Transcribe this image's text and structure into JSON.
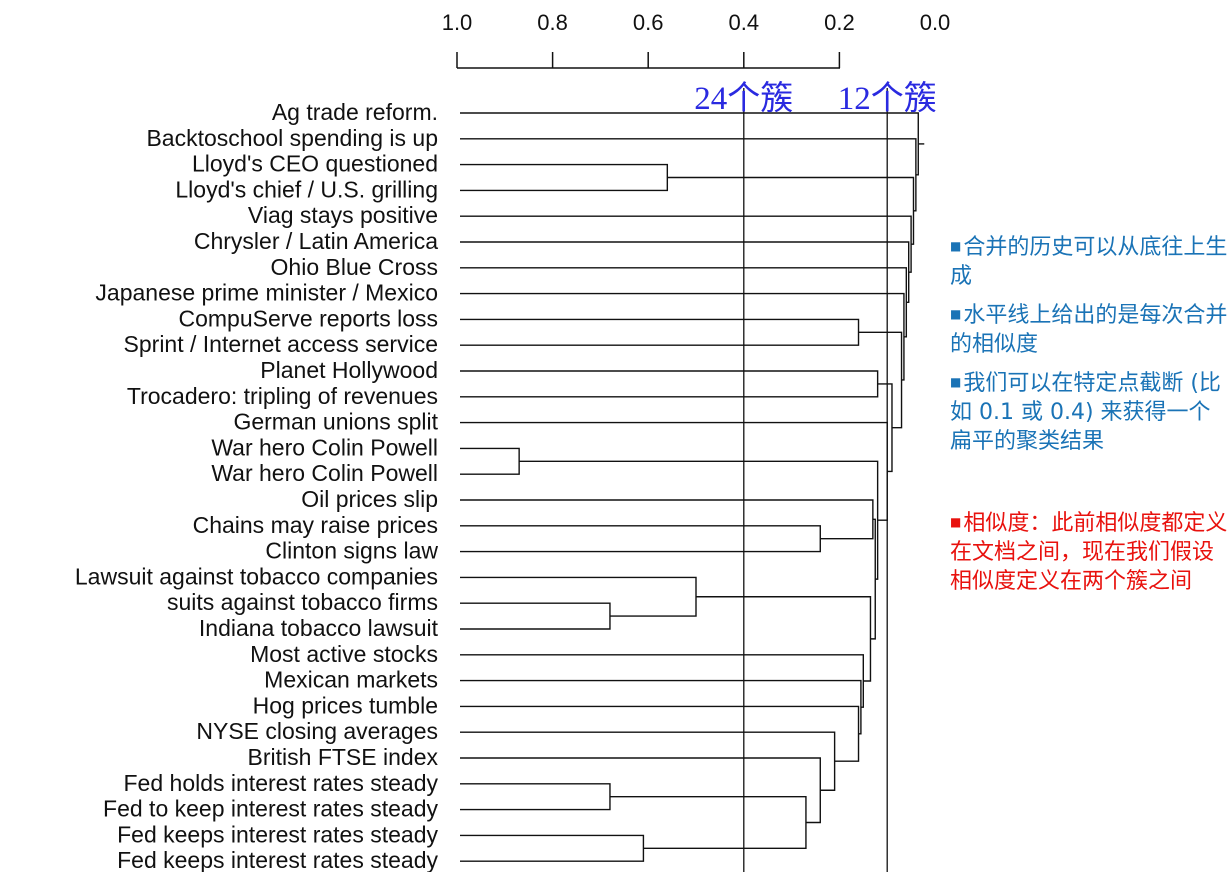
{
  "axis": {
    "ticks": [
      "1.0",
      "0.8",
      "0.6",
      "0.4",
      "0.2",
      "0.0"
    ]
  },
  "cut_lines": [
    {
      "label": "24个簇",
      "similarity": 0.4
    },
    {
      "label": "12个簇",
      "similarity": 0.1
    }
  ],
  "leaves": [
    "Ag trade reform.",
    "Backtoschool spending is up",
    "Lloyd's CEO questioned",
    "Lloyd's chief / U.S. grilling",
    "Viag stays positive",
    "Chrysler / Latin America",
    "Ohio Blue Cross",
    "Japanese prime minister / Mexico",
    "CompuServe reports loss",
    "Sprint / Internet access service",
    "Planet Hollywood",
    "Trocadero: tripling of revenues",
    "German unions split",
    "War hero Colin Powell",
    "War hero Colin Powell",
    "Oil prices slip",
    "Chains may raise prices",
    "Clinton signs law",
    "Lawsuit against tobacco companies",
    "suits against tobacco firms",
    "Indiana tobacco lawsuit",
    "Most active stocks",
    "Mexican markets",
    "Hog prices tumble",
    "NYSE closing averages",
    "British FTSE index",
    "Fed holds interest rates steady",
    "Fed to keep interest rates steady",
    "Fed keeps interest rates steady",
    "Fed keeps interest rates steady"
  ],
  "merges": [
    {
      "a": "L2",
      "b": "L3",
      "sim": 0.56
    },
    {
      "a": "L13",
      "b": "L14",
      "sim": 0.87
    },
    {
      "a": "L19",
      "b": "L20",
      "sim": 0.68
    },
    {
      "a": "L18",
      "b": "M3",
      "sim": 0.5
    },
    {
      "a": "L26",
      "b": "L27",
      "sim": 0.68
    },
    {
      "a": "L28",
      "b": "L29",
      "sim": 0.61
    },
    {
      "a": "M5",
      "b": "M6",
      "sim": 0.27
    },
    {
      "a": "L25",
      "b": "M7",
      "sim": 0.24
    },
    {
      "a": "L24",
      "b": "M8",
      "sim": 0.21
    },
    {
      "a": "L23",
      "b": "M9",
      "sim": 0.16
    },
    {
      "a": "L22",
      "b": "M10",
      "sim": 0.155
    },
    {
      "a": "L21",
      "b": "M11",
      "sim": 0.15
    },
    {
      "a": "M4",
      "b": "M12",
      "sim": 0.135
    },
    {
      "a": "L16",
      "b": "L17",
      "sim": 0.24
    },
    {
      "a": "L15",
      "b": "M14",
      "sim": 0.13
    },
    {
      "a": "M13",
      "b": "M15",
      "sim": 0.125
    },
    {
      "a": "M2",
      "b": "M16",
      "sim": 0.12
    },
    {
      "a": "L8",
      "b": "L9",
      "sim": 0.16
    },
    {
      "a": "L10",
      "b": "L11",
      "sim": 0.12
    },
    {
      "a": "L12",
      "b": "M17",
      "sim": 0.1
    },
    {
      "a": "M19",
      "b": "M20",
      "sim": 0.09
    },
    {
      "a": "M18",
      "b": "M21",
      "sim": 0.07
    },
    {
      "a": "L7",
      "b": "M22",
      "sim": 0.065
    },
    {
      "a": "L6",
      "b": "M23",
      "sim": 0.06
    },
    {
      "a": "L5",
      "b": "M24",
      "sim": 0.055
    },
    {
      "a": "L4",
      "b": "M25",
      "sim": 0.05
    },
    {
      "a": "M1",
      "b": "M26",
      "sim": 0.045
    },
    {
      "a": "L1",
      "b": "M27",
      "sim": 0.04
    },
    {
      "a": "L0",
      "b": "M28",
      "sim": 0.035
    }
  ],
  "notes": [
    {
      "text": "合并的历史可以从底往上生成",
      "color": "blue"
    },
    {
      "text": "水平线上给出的是每次合并的相似度",
      "color": "blue"
    },
    {
      "text": "我们可以在特定点截断 (比如 0.1 或 0.4) 来获得一个扁平的聚类结果",
      "color": "blue"
    },
    {
      "text": "相似度：此前相似度都定义在文档之间，现在我们假设相似度定义在两个簇之间",
      "color": "red"
    }
  ],
  "colors": {
    "line": "#111111",
    "cut_label": "#2a2ae0",
    "note_blue": "#1a73b6",
    "note_red": "#e8110d"
  }
}
